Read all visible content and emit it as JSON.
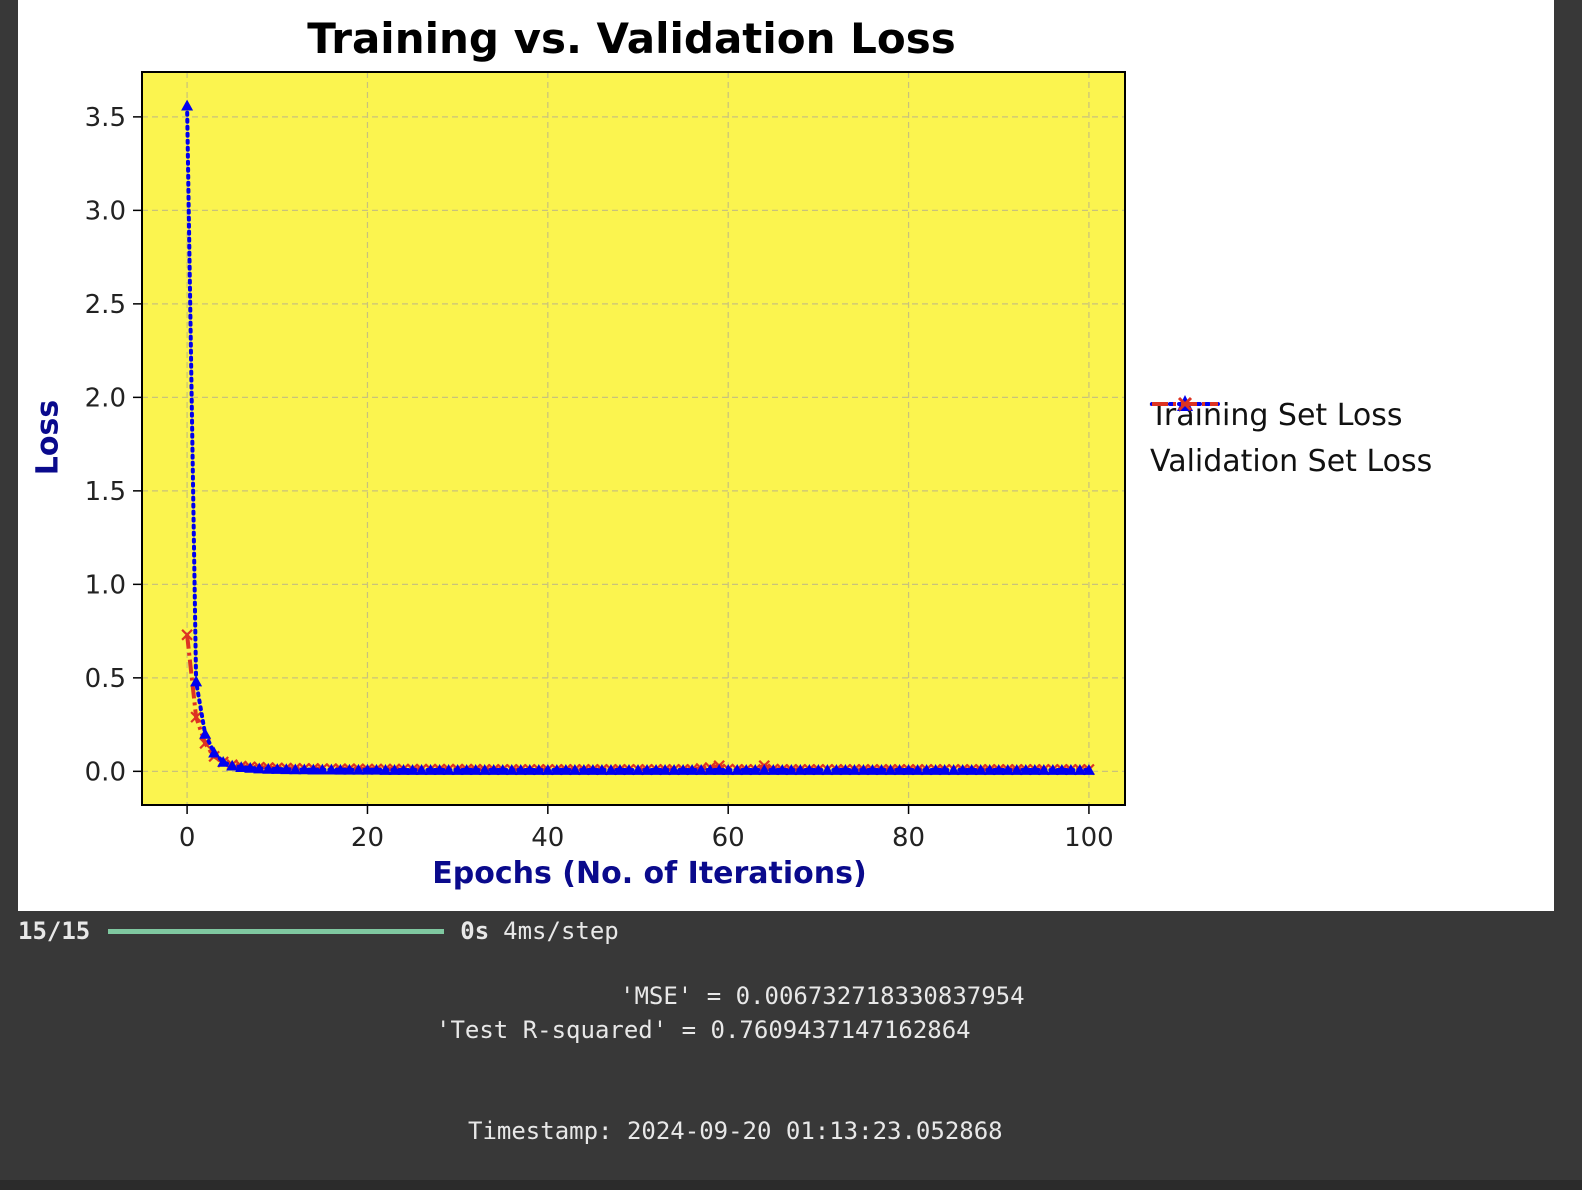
{
  "chart_data": {
    "type": "line",
    "title": "Training vs. Validation Loss",
    "xlabel": "Epochs (No. of Iterations)",
    "ylabel": "Loss",
    "xlim": [
      -5,
      104
    ],
    "ylim": [
      -0.18,
      3.74
    ],
    "xticks": [
      0,
      20,
      40,
      60,
      80,
      100
    ],
    "yticks": [
      0.0,
      0.5,
      1.0,
      1.5,
      2.0,
      2.5,
      3.0,
      3.5
    ],
    "ytick_labels": [
      "0.0",
      "0.5",
      "1.0",
      "1.5",
      "2.0",
      "2.5",
      "3.0",
      "3.5"
    ],
    "grid": true,
    "legend_position": "outside-right",
    "plot_background": "#fbf44f",
    "x": [
      0,
      1,
      2,
      3,
      4,
      5,
      6,
      7,
      8,
      9,
      10,
      11,
      12,
      13,
      14,
      15,
      16,
      17,
      18,
      19,
      20,
      21,
      22,
      23,
      24,
      25,
      26,
      27,
      28,
      29,
      30,
      31,
      32,
      33,
      34,
      35,
      36,
      37,
      38,
      39,
      40,
      41,
      42,
      43,
      44,
      45,
      46,
      47,
      48,
      49,
      50,
      51,
      52,
      53,
      54,
      55,
      56,
      57,
      58,
      59,
      60,
      61,
      62,
      63,
      64,
      65,
      66,
      67,
      68,
      69,
      70,
      71,
      72,
      73,
      74,
      75,
      76,
      77,
      78,
      79,
      80,
      81,
      82,
      83,
      84,
      85,
      86,
      87,
      88,
      89,
      90,
      91,
      92,
      93,
      94,
      95,
      96,
      97,
      98,
      99,
      100
    ],
    "series": [
      {
        "name": "Training Set Loss",
        "color": "#0000ee",
        "linestyle": "dotted",
        "marker": "triangle",
        "values": [
          3.56,
          0.48,
          0.2,
          0.1,
          0.05,
          0.03,
          0.022,
          0.018,
          0.015,
          0.013,
          0.012,
          0.011,
          0.01,
          0.01,
          0.009,
          0.009,
          0.009,
          0.008,
          0.008,
          0.008,
          0.008,
          0.008,
          0.007,
          0.007,
          0.007,
          0.007,
          0.007,
          0.007,
          0.007,
          0.007,
          0.007,
          0.007,
          0.007,
          0.007,
          0.007,
          0.007,
          0.007,
          0.007,
          0.007,
          0.007,
          0.007,
          0.007,
          0.007,
          0.007,
          0.007,
          0.007,
          0.007,
          0.007,
          0.007,
          0.007,
          0.007,
          0.007,
          0.007,
          0.007,
          0.007,
          0.007,
          0.007,
          0.007,
          0.007,
          0.007,
          0.007,
          0.007,
          0.007,
          0.007,
          0.007,
          0.007,
          0.007,
          0.007,
          0.007,
          0.007,
          0.007,
          0.007,
          0.007,
          0.007,
          0.007,
          0.007,
          0.007,
          0.007,
          0.007,
          0.007,
          0.007,
          0.007,
          0.007,
          0.007,
          0.007,
          0.007,
          0.007,
          0.007,
          0.007,
          0.007,
          0.007,
          0.007,
          0.007,
          0.007,
          0.007,
          0.007,
          0.007,
          0.007,
          0.007,
          0.007,
          0.007
        ]
      },
      {
        "name": "Validation Set Loss",
        "color": "#dd3322",
        "linestyle": "dashdot",
        "marker": "x",
        "values": [
          0.73,
          0.29,
          0.15,
          0.08,
          0.05,
          0.035,
          0.028,
          0.024,
          0.022,
          0.02,
          0.018,
          0.017,
          0.016,
          0.015,
          0.015,
          0.014,
          0.014,
          0.013,
          0.013,
          0.013,
          0.012,
          0.012,
          0.012,
          0.012,
          0.012,
          0.011,
          0.011,
          0.011,
          0.011,
          0.011,
          0.011,
          0.011,
          0.011,
          0.01,
          0.01,
          0.01,
          0.01,
          0.01,
          0.01,
          0.01,
          0.01,
          0.01,
          0.01,
          0.01,
          0.01,
          0.01,
          0.01,
          0.01,
          0.01,
          0.01,
          0.01,
          0.01,
          0.01,
          0.01,
          0.01,
          0.01,
          0.01,
          0.015,
          0.02,
          0.03,
          0.012,
          0.01,
          0.01,
          0.01,
          0.03,
          0.012,
          0.01,
          0.01,
          0.01,
          0.01,
          0.01,
          0.01,
          0.01,
          0.01,
          0.01,
          0.01,
          0.01,
          0.01,
          0.01,
          0.01,
          0.01,
          0.01,
          0.01,
          0.01,
          0.01,
          0.01,
          0.01,
          0.01,
          0.01,
          0.01,
          0.01,
          0.01,
          0.01,
          0.01,
          0.01,
          0.01,
          0.01,
          0.01,
          0.01,
          0.01,
          0.01
        ]
      }
    ]
  },
  "console": {
    "steps": "15/15",
    "progress": 1.0,
    "progress_color": "#7fc8a0",
    "elapsed": "0s",
    "per_step": "4ms/step",
    "mse_line": "'MSE' = 0.006732718330837954",
    "r2_line": "'Test R-squared' = 0.7609437147162864",
    "timestamp_line": "Timestamp: 2024-09-20 01:13:23.052868"
  }
}
